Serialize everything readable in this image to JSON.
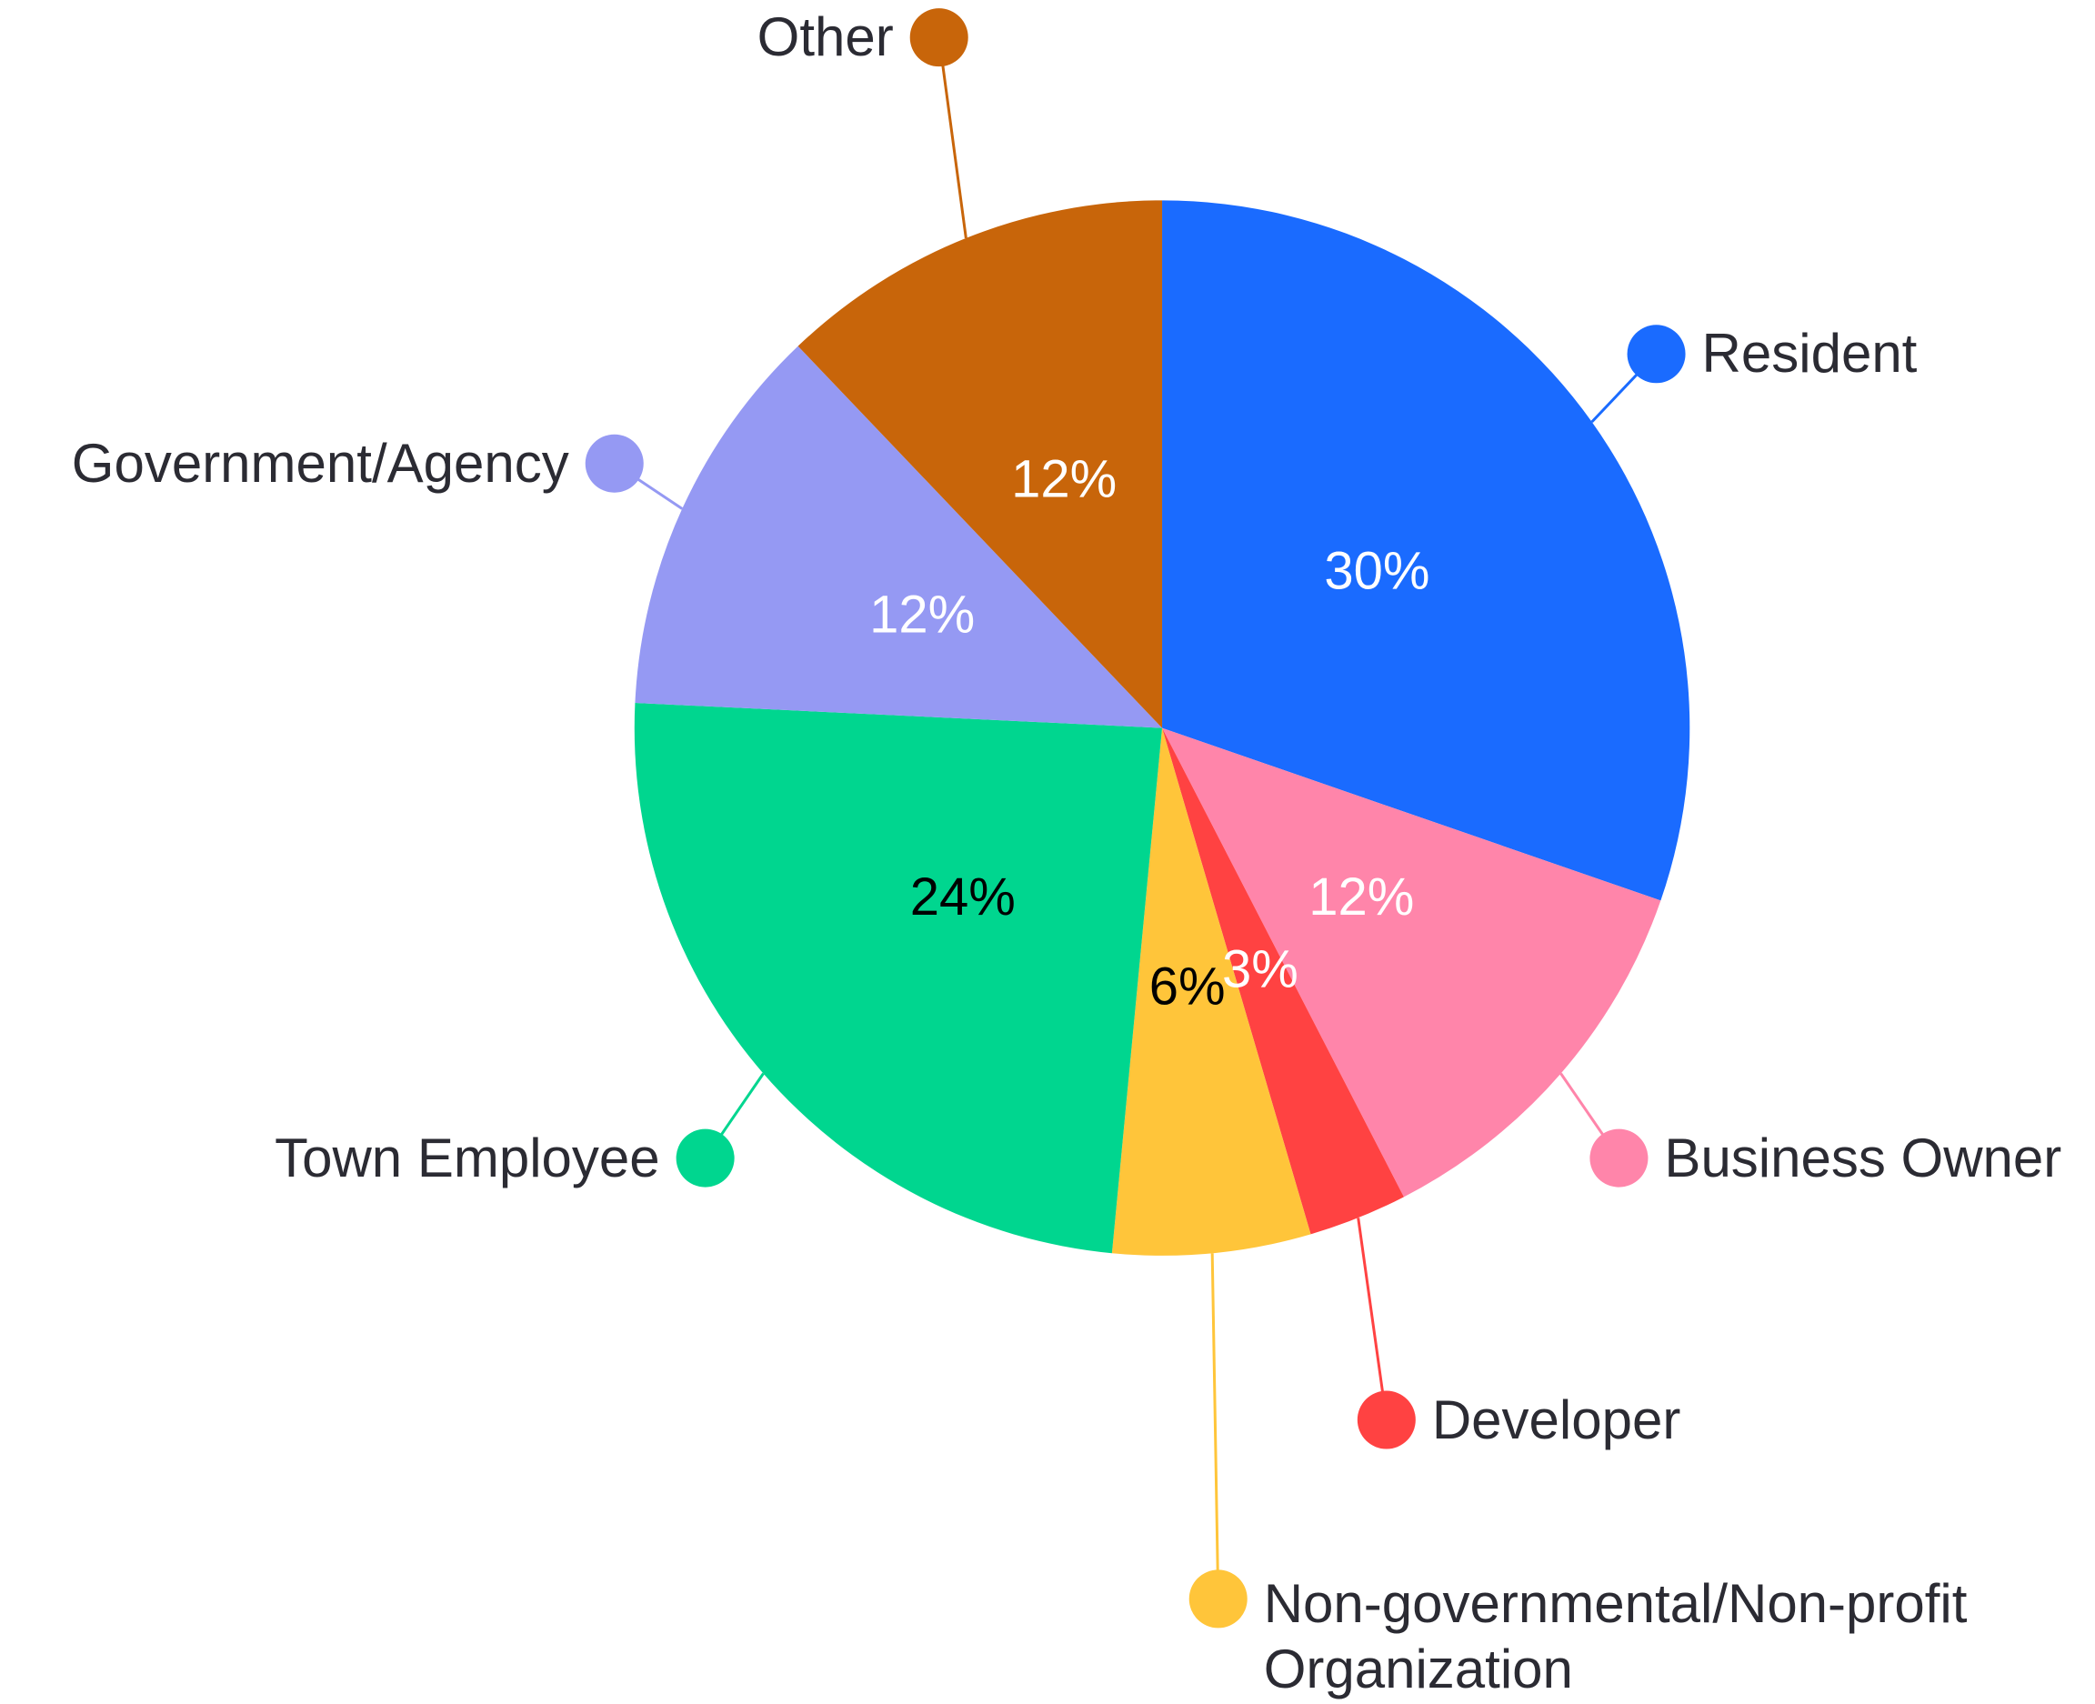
{
  "chart_data": {
    "type": "pie",
    "categories": [
      "Resident",
      "Business Owner",
      "Developer",
      "Non-governmental/Non-profit Organization",
      "Town Employee",
      "Government/Agency",
      "Other"
    ],
    "values": [
      30,
      12,
      3,
      6,
      24,
      12,
      12
    ],
    "value_labels": [
      "30%",
      "12%",
      "3%",
      "6%",
      "24%",
      "12%",
      "12%"
    ],
    "colors": [
      "#1a6bff",
      "#ff85aa",
      "#ff4242",
      "#ffc53a",
      "#00d68f",
      "#9599f3",
      "#c8650a"
    ],
    "value_label_colors": [
      "#ffffff",
      "#ffffff",
      "#ffffff",
      "#000000",
      "#000000",
      "#ffffff",
      "#ffffff"
    ]
  }
}
